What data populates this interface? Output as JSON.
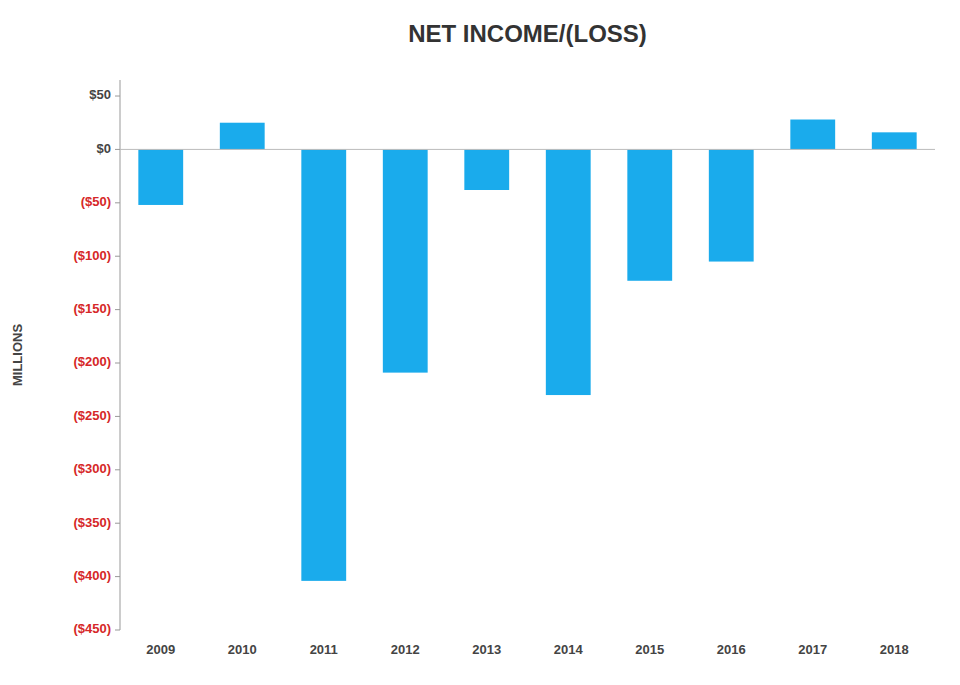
{
  "chart_data": {
    "type": "bar",
    "title": "NET INCOME/(LOSS)",
    "y_label": "MILLIONS",
    "categories": [
      "2009",
      "2010",
      "2011",
      "2012",
      "2013",
      "2014",
      "2015",
      "2016",
      "2017",
      "2018"
    ],
    "values": [
      -52,
      25,
      -404,
      -209,
      -38,
      -230,
      -123,
      -105,
      28,
      16
    ],
    "color": "#1AABEC",
    "ylim": [
      -450,
      65
    ],
    "yticks": [
      {
        "value": 50,
        "label": "$50"
      },
      {
        "value": 0,
        "label": "$0"
      },
      {
        "value": -50,
        "label": "($50)"
      },
      {
        "value": -100,
        "label": "($100)"
      },
      {
        "value": -150,
        "label": "($150)"
      },
      {
        "value": -200,
        "label": "($200)"
      },
      {
        "value": -250,
        "label": "($250)"
      },
      {
        "value": -300,
        "label": "($300)"
      },
      {
        "value": -350,
        "label": "($350)"
      },
      {
        "value": -400,
        "label": "($400)"
      },
      {
        "value": -450,
        "label": "($450)"
      }
    ],
    "grid": false
  }
}
